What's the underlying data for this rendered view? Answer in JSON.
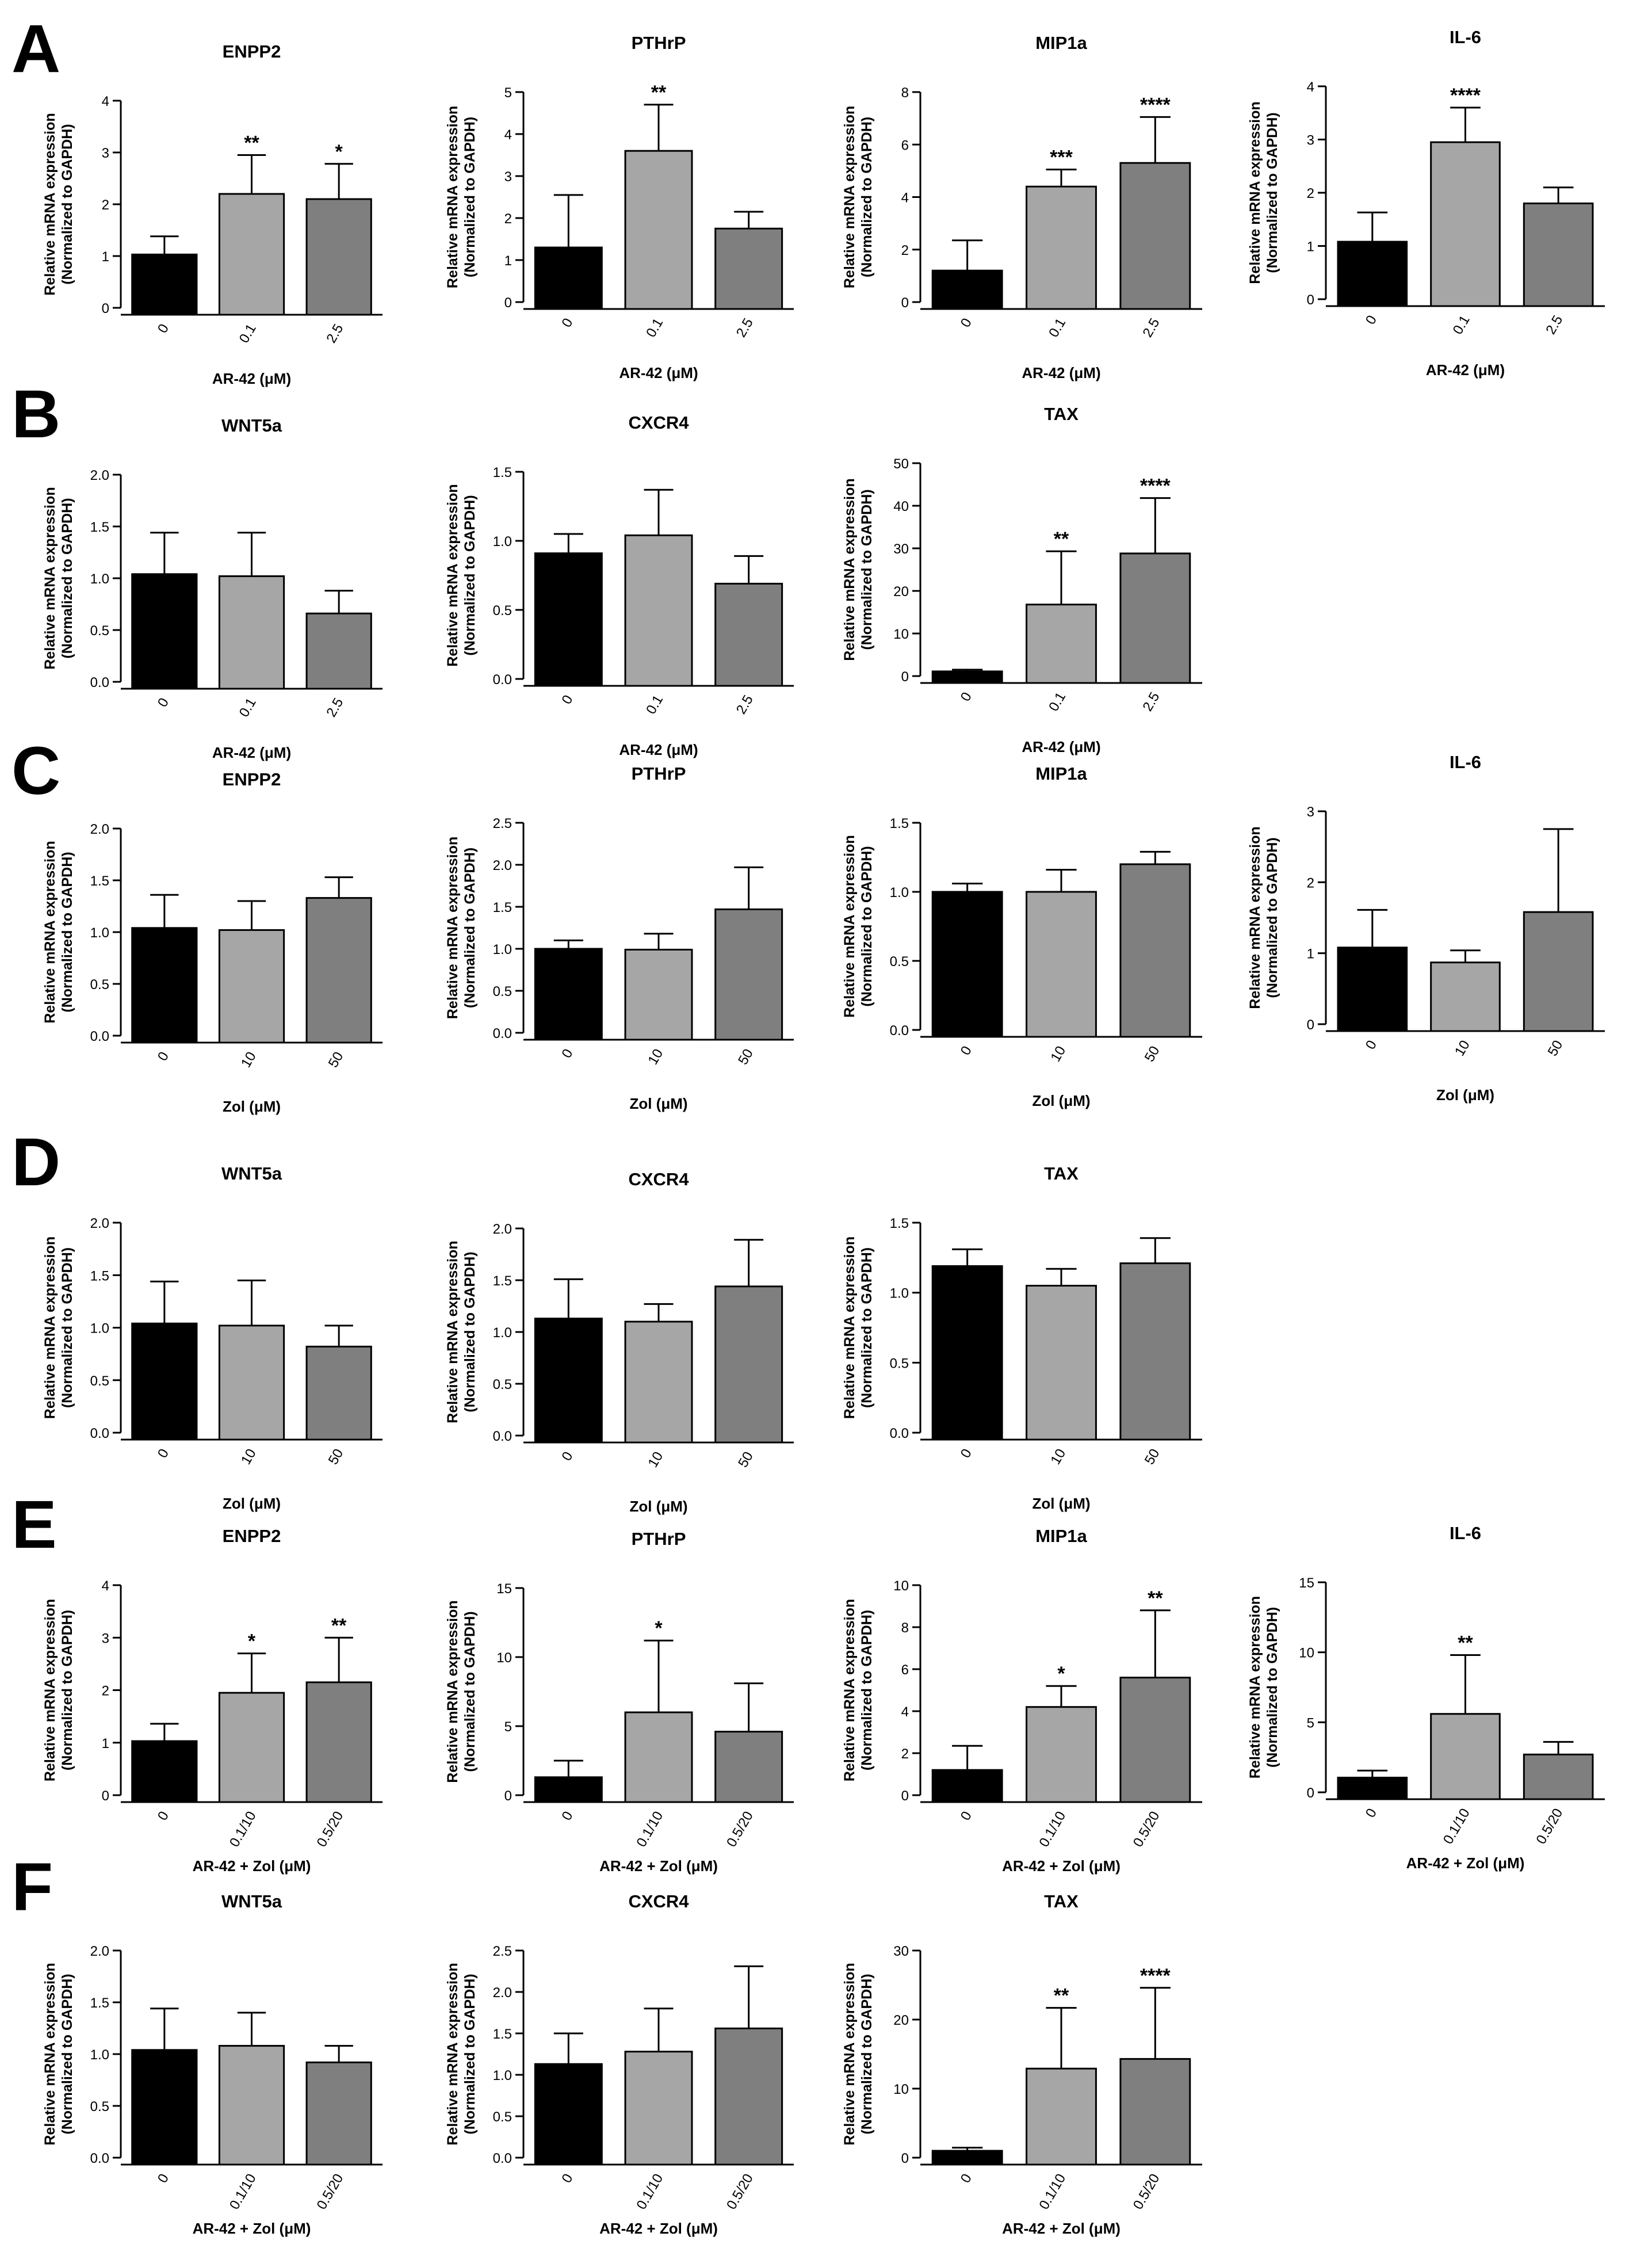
{
  "colors": {
    "c0": "#000000",
    "c1": "#a6a6a6",
    "c2": "#7f7f7f"
  },
  "y_label_line1": "Relative mRNA expression",
  "y_label_line2": "(Normalized to GAPDH)",
  "chart_data": [
    {
      "panel": "A",
      "type": "bar",
      "title": "ENPP2",
      "xlabel": "AR-42 (μM)",
      "categories": [
        "0",
        "0.1",
        "2.5"
      ],
      "values": [
        1.03,
        2.2,
        2.1
      ],
      "errors": [
        0.35,
        0.75,
        0.68
      ],
      "sig": [
        "",
        "**",
        "*"
      ],
      "ylim": [
        0,
        4
      ],
      "yticks": [
        "0",
        "1",
        "2",
        "3",
        "4"
      ]
    },
    {
      "panel": "A",
      "type": "bar",
      "title": "PTHrP",
      "xlabel": "AR-42 (μM)",
      "categories": [
        "0",
        "0.1",
        "2.5"
      ],
      "values": [
        1.3,
        3.6,
        1.75
      ],
      "errors": [
        1.25,
        1.1,
        0.4
      ],
      "sig": [
        "",
        "**",
        ""
      ],
      "ylim": [
        0,
        5
      ],
      "yticks": [
        "0",
        "1",
        "2",
        "3",
        "4",
        "5"
      ]
    },
    {
      "panel": "A",
      "type": "bar",
      "title": "MIP1a",
      "xlabel": "AR-42 (μM)",
      "categories": [
        "0",
        "0.1",
        "2.5"
      ],
      "values": [
        1.2,
        4.4,
        5.3
      ],
      "errors": [
        1.15,
        0.65,
        1.75
      ],
      "sig": [
        "",
        "***",
        "****"
      ],
      "ylim": [
        0,
        8
      ],
      "yticks": [
        "0",
        "2",
        "4",
        "6",
        "8"
      ]
    },
    {
      "panel": "A",
      "type": "bar",
      "title": "IL-6",
      "xlabel": "AR-42 (μM)",
      "categories": [
        "0",
        "0.1",
        "2.5"
      ],
      "values": [
        1.08,
        2.95,
        1.8
      ],
      "errors": [
        0.55,
        0.65,
        0.3
      ],
      "sig": [
        "",
        "****",
        ""
      ],
      "ylim": [
        0,
        4
      ],
      "yticks": [
        "0",
        "1",
        "2",
        "3",
        "4"
      ]
    },
    {
      "panel": "B",
      "type": "bar",
      "title": "WNT5a",
      "xlabel": "AR-42 (μM)",
      "categories": [
        "0",
        "0.1",
        "2.5"
      ],
      "values": [
        1.04,
        1.02,
        0.66
      ],
      "errors": [
        0.4,
        0.42,
        0.22
      ],
      "sig": [
        "",
        "",
        ""
      ],
      "ylim": [
        0,
        2
      ],
      "yticks": [
        "0.0",
        "0.5",
        "1.0",
        "1.5",
        "2.0"
      ]
    },
    {
      "panel": "B",
      "type": "bar",
      "title": "CXCR4",
      "xlabel": "AR-42 (μM)",
      "categories": [
        "0",
        "0.1",
        "2.5"
      ],
      "values": [
        0.91,
        1.04,
        0.69
      ],
      "errors": [
        0.14,
        0.33,
        0.2
      ],
      "sig": [
        "",
        "",
        ""
      ],
      "ylim": [
        0,
        1.5
      ],
      "yticks": [
        "0.0",
        "0.5",
        "1.0",
        "1.5"
      ]
    },
    {
      "panel": "B",
      "type": "bar",
      "title": "TAX",
      "xlabel": "AR-42 (μM)",
      "categories": [
        "0",
        "0.1",
        "2.5"
      ],
      "values": [
        1.1,
        16.8,
        28.8
      ],
      "errors": [
        0.4,
        12.5,
        13
      ],
      "sig": [
        "",
        "**",
        "****"
      ],
      "ylim": [
        0,
        50
      ],
      "yticks": [
        "0",
        "10",
        "20",
        "30",
        "40",
        "50"
      ]
    },
    {
      "panel": "C",
      "type": "bar",
      "title": "ENPP2",
      "xlabel": "Zol (μM)",
      "categories": [
        "0",
        "10",
        "50"
      ],
      "values": [
        1.04,
        1.02,
        1.33
      ],
      "errors": [
        0.32,
        0.28,
        0.2
      ],
      "sig": [
        "",
        "",
        ""
      ],
      "ylim": [
        0,
        2
      ],
      "yticks": [
        "0.0",
        "0.5",
        "1.0",
        "1.5",
        "2.0"
      ]
    },
    {
      "panel": "C",
      "type": "bar",
      "title": "PTHrP",
      "xlabel": "Zol (μM)",
      "categories": [
        "0",
        "10",
        "50"
      ],
      "values": [
        1.0,
        0.99,
        1.47
      ],
      "errors": [
        0.1,
        0.19,
        0.5
      ],
      "sig": [
        "",
        "",
        ""
      ],
      "ylim": [
        0,
        2.5
      ],
      "yticks": [
        "0.0",
        "0.5",
        "1.0",
        "1.5",
        "2.0",
        "2.5"
      ]
    },
    {
      "panel": "C",
      "type": "bar",
      "title": "MIP1a",
      "xlabel": "Zol (μM)",
      "categories": [
        "0",
        "10",
        "50"
      ],
      "values": [
        1.0,
        1.0,
        1.2
      ],
      "errors": [
        0.06,
        0.16,
        0.09
      ],
      "sig": [
        "",
        "",
        ""
      ],
      "ylim": [
        0,
        1.5
      ],
      "yticks": [
        "0.0",
        "0.5",
        "1.0",
        "1.5"
      ]
    },
    {
      "panel": "C",
      "type": "bar",
      "title": "IL-6",
      "xlabel": "Zol (μM)",
      "categories": [
        "0",
        "10",
        "50"
      ],
      "values": [
        1.08,
        0.87,
        1.58
      ],
      "errors": [
        0.53,
        0.17,
        1.17
      ],
      "sig": [
        "",
        "",
        ""
      ],
      "ylim": [
        0,
        3
      ],
      "yticks": [
        "0",
        "1",
        "2",
        "3"
      ]
    },
    {
      "panel": "D",
      "type": "bar",
      "title": "WNT5a",
      "xlabel": "Zol (μM)",
      "categories": [
        "0",
        "10",
        "50"
      ],
      "values": [
        1.04,
        1.02,
        0.82
      ],
      "errors": [
        0.4,
        0.43,
        0.2
      ],
      "sig": [
        "",
        "",
        ""
      ],
      "ylim": [
        0,
        2
      ],
      "yticks": [
        "0.0",
        "0.5",
        "1.0",
        "1.5",
        "2.0"
      ]
    },
    {
      "panel": "D",
      "type": "bar",
      "title": "CXCR4",
      "xlabel": "Zol (μM)",
      "categories": [
        "0",
        "10",
        "50"
      ],
      "values": [
        1.13,
        1.1,
        1.44
      ],
      "errors": [
        0.38,
        0.17,
        0.45
      ],
      "sig": [
        "",
        "",
        ""
      ],
      "ylim": [
        0,
        2
      ],
      "yticks": [
        "0.0",
        "0.5",
        "1.0",
        "1.5",
        "2.0"
      ]
    },
    {
      "panel": "D",
      "type": "bar",
      "title": "TAX",
      "xlabel": "Zol (μM)",
      "categories": [
        "0",
        "10",
        "50"
      ],
      "values": [
        1.19,
        1.05,
        1.21
      ],
      "errors": [
        0.12,
        0.12,
        0.18
      ],
      "sig": [
        "",
        "",
        ""
      ],
      "ylim": [
        0,
        1.5
      ],
      "yticks": [
        "0.0",
        "0.5",
        "1.0",
        "1.5"
      ]
    },
    {
      "panel": "E",
      "type": "bar",
      "title": "ENPP2",
      "xlabel": "AR-42 +  Zol (μM)",
      "categories": [
        "0",
        "0.1/10",
        "0.5/20"
      ],
      "values": [
        1.03,
        1.95,
        2.15
      ],
      "errors": [
        0.33,
        0.75,
        0.85
      ],
      "sig": [
        "",
        "*",
        "**"
      ],
      "ylim": [
        0,
        4
      ],
      "yticks": [
        "0",
        "1",
        "2",
        "3",
        "4"
      ]
    },
    {
      "panel": "E",
      "type": "bar",
      "title": "PTHrP",
      "xlabel": "AR-42 +  Zol (μM)",
      "categories": [
        "0",
        "0.1/10",
        "0.5/20"
      ],
      "values": [
        1.3,
        6.0,
        4.6
      ],
      "errors": [
        1.2,
        5.2,
        3.5
      ],
      "sig": [
        "",
        "*",
        ""
      ],
      "ylim": [
        0,
        15
      ],
      "yticks": [
        "0",
        "5",
        "10",
        "15"
      ]
    },
    {
      "panel": "E",
      "type": "bar",
      "title": "MIP1a",
      "xlabel": "AR-42 +  Zol (μM)",
      "categories": [
        "0",
        "0.1/10",
        "0.5/20"
      ],
      "values": [
        1.2,
        4.2,
        5.6
      ],
      "errors": [
        1.15,
        1.0,
        3.2
      ],
      "sig": [
        "",
        "*",
        "**"
      ],
      "ylim": [
        0,
        10
      ],
      "yticks": [
        "0",
        "2",
        "4",
        "6",
        "8",
        "10"
      ]
    },
    {
      "panel": "E",
      "type": "bar",
      "title": "IL-6",
      "xlabel": "AR-42 +  Zol (μM)",
      "categories": [
        "0",
        "0.1/10",
        "0.5/20"
      ],
      "values": [
        1.05,
        5.6,
        2.7
      ],
      "errors": [
        0.5,
        4.2,
        0.9
      ],
      "sig": [
        "",
        "**",
        ""
      ],
      "ylim": [
        0,
        15
      ],
      "yticks": [
        "0",
        "5",
        "10",
        "15"
      ]
    },
    {
      "panel": "F",
      "type": "bar",
      "title": "WNT5a",
      "xlabel": "AR-42 +  Zol (μM)",
      "categories": [
        "0",
        "0.1/10",
        "0.5/20"
      ],
      "values": [
        1.04,
        1.08,
        0.92
      ],
      "errors": [
        0.4,
        0.32,
        0.16
      ],
      "sig": [
        "",
        "",
        ""
      ],
      "ylim": [
        0,
        2
      ],
      "yticks": [
        "0.0",
        "0.5",
        "1.0",
        "1.5",
        "2.0"
      ]
    },
    {
      "panel": "F",
      "type": "bar",
      "title": "CXCR4",
      "xlabel": "AR-42 +  Zol (μM)",
      "categories": [
        "0",
        "0.1/10",
        "0.5/20"
      ],
      "values": [
        1.13,
        1.28,
        1.56
      ],
      "errors": [
        0.37,
        0.52,
        0.75
      ],
      "sig": [
        "",
        "",
        ""
      ],
      "ylim": [
        0,
        2.5
      ],
      "yticks": [
        "0.0",
        "0.5",
        "1.0",
        "1.5",
        "2.0",
        "2.5"
      ]
    },
    {
      "panel": "F",
      "type": "bar",
      "title": "TAX",
      "xlabel": "AR-42 +  Zol (μM)",
      "categories": [
        "0",
        "0.1/10",
        "0.5/20"
      ],
      "values": [
        1.0,
        12.9,
        14.3
      ],
      "errors": [
        0.45,
        8.8,
        10.3
      ],
      "sig": [
        "",
        "**",
        "****"
      ],
      "ylim": [
        0,
        30
      ],
      "yticks": [
        "0",
        "10",
        "20",
        "30"
      ]
    }
  ]
}
